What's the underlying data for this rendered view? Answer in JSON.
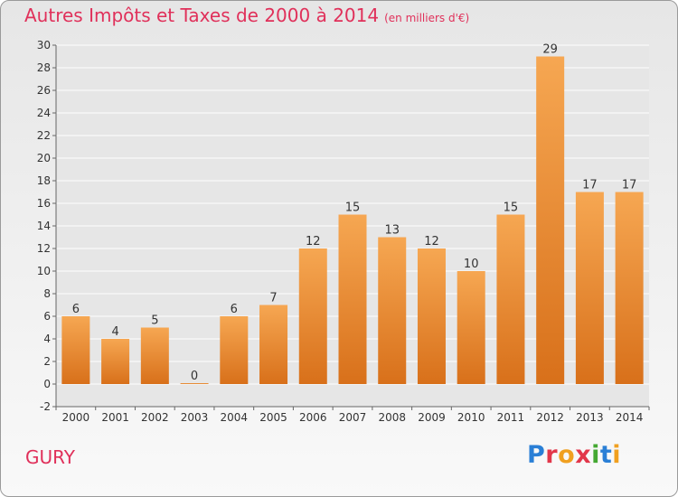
{
  "title": "Autres Impôts et Taxes de 2000 à 2014",
  "subtitle": "(en milliers d'€)",
  "commune": "GURY",
  "logo": "Proxiti",
  "colors": {
    "title": "#e0305a",
    "bar_top": "#f6a752",
    "bar_bottom": "#d8701a",
    "grid": "#ffffff",
    "axis": "#666666",
    "plot_bg": "#e6e6e6"
  },
  "chart_data": {
    "type": "bar",
    "categories": [
      "2000",
      "2001",
      "2002",
      "2003",
      "2004",
      "2005",
      "2006",
      "2007",
      "2008",
      "2009",
      "2010",
      "2011",
      "2012",
      "2013",
      "2014"
    ],
    "values": [
      6,
      4,
      5,
      0,
      6,
      7,
      12,
      15,
      13,
      12,
      10,
      15,
      29,
      17,
      17
    ],
    "title": "Autres Impôts et Taxes de 2000 à 2014",
    "subtitle": "(en milliers d'€)",
    "xlabel": "",
    "ylabel": "",
    "ylim": [
      -2,
      30
    ],
    "ytick_step": 2,
    "grid": true,
    "data_labels": true
  }
}
